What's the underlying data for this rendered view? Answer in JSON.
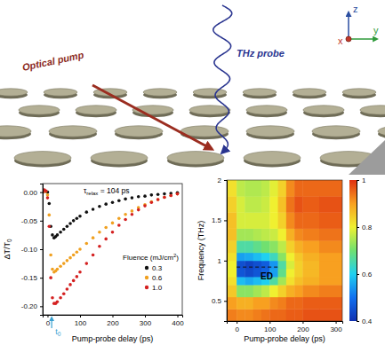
{
  "diagram": {
    "pump_label": "Optical pump",
    "probe_label": "THz probe",
    "axis_labels": [
      "x",
      "y",
      "z"
    ]
  },
  "chart_data": [
    {
      "type": "scatter",
      "x_label": "Pump-probe delay (ps)",
      "y_label": {
        "text": "ΔT/T",
        "sub": "0"
      },
      "x": [
        -15,
        -10,
        -5,
        0,
        5,
        10,
        15,
        20,
        25,
        30,
        40,
        50,
        60,
        70,
        80,
        90,
        100,
        120,
        140,
        160,
        180,
        200,
        220,
        240,
        260,
        280,
        300,
        320,
        340,
        360,
        380,
        400
      ],
      "series": [
        {
          "name": "0.3",
          "color": "#111111",
          "values": [
            0,
            0.002,
            0.001,
            0,
            -0.02,
            -0.06,
            -0.075,
            -0.08,
            -0.078,
            -0.075,
            -0.07,
            -0.065,
            -0.06,
            -0.055,
            -0.05,
            -0.046,
            -0.042,
            -0.035,
            -0.03,
            -0.025,
            -0.021,
            -0.018,
            -0.015,
            -0.012,
            -0.01,
            -0.008,
            -0.007,
            -0.005,
            -0.004,
            -0.003,
            -0.002,
            -0.001
          ]
        },
        {
          "name": "0.6",
          "color": "#f0a020",
          "values": [
            0,
            0.003,
            0.001,
            -0.005,
            -0.04,
            -0.11,
            -0.135,
            -0.14,
            -0.138,
            -0.135,
            -0.13,
            -0.125,
            -0.12,
            -0.115,
            -0.11,
            -0.105,
            -0.1,
            -0.09,
            -0.08,
            -0.07,
            -0.062,
            -0.054,
            -0.046,
            -0.039,
            -0.033,
            -0.027,
            -0.022,
            -0.017,
            -0.013,
            -0.009,
            -0.006,
            -0.003
          ]
        },
        {
          "name": "1.0",
          "color": "#d42020",
          "values": [
            0,
            0.004,
            0.002,
            -0.01,
            -0.06,
            -0.15,
            -0.185,
            -0.195,
            -0.195,
            -0.192,
            -0.185,
            -0.178,
            -0.17,
            -0.162,
            -0.155,
            -0.148,
            -0.14,
            -0.125,
            -0.11,
            -0.095,
            -0.082,
            -0.07,
            -0.058,
            -0.048,
            -0.039,
            -0.031,
            -0.024,
            -0.018,
            -0.013,
            -0.009,
            -0.006,
            -0.003
          ]
        }
      ],
      "xlim": [
        -15,
        415
      ],
      "ylim": [
        -0.215,
        0.015
      ],
      "xticks": [
        0,
        100,
        200,
        300,
        400
      ],
      "yticks": [
        {
          "value": -0.2,
          "label": "-0.20"
        },
        {
          "value": -0.15,
          "label": "-0.15"
        },
        {
          "value": -0.1,
          "label": "-0.10"
        },
        {
          "value": -0.05,
          "label": "-0.05"
        },
        {
          "value": 0,
          "label": "0.00"
        }
      ],
      "marker": "circle",
      "legend": "lower right",
      "legend_title": {
        "text": "Fluence (mJ/cm",
        "sup": "2",
        "after": ")"
      },
      "annotations": [
        {
          "text": "τ",
          "sub": "relax",
          "after": " = 104 ps"
        },
        {
          "text": "t",
          "sub": "0",
          "x": 10
        }
      ]
    },
    {
      "type": "heatmap",
      "x_label": "Pump-probe delay (ps)",
      "y_label": "Frequency (THz)",
      "x_bins": [
        -30,
        0,
        25,
        50,
        75,
        100,
        125,
        150,
        175,
        200,
        250,
        320
      ],
      "y_bins": [
        0.25,
        0.4,
        0.55,
        0.7,
        0.8,
        0.9,
        1.0,
        1.1,
        1.25,
        1.4,
        1.6,
        1.8,
        2.0
      ],
      "cells": [
        [
          0.93,
          0.92,
          0.92,
          0.93,
          0.94,
          0.95,
          0.95,
          0.96,
          0.96,
          0.97,
          0.97
        ],
        [
          0.9,
          0.88,
          0.88,
          0.9,
          0.9,
          0.92,
          0.93,
          0.95,
          0.95,
          0.96,
          0.96
        ],
        [
          0.85,
          0.72,
          0.72,
          0.74,
          0.76,
          0.8,
          0.84,
          0.88,
          0.9,
          0.92,
          0.93
        ],
        [
          0.82,
          0.58,
          0.56,
          0.58,
          0.6,
          0.66,
          0.74,
          0.82,
          0.86,
          0.88,
          0.9
        ],
        [
          0.8,
          0.46,
          0.44,
          0.46,
          0.48,
          0.55,
          0.68,
          0.8,
          0.84,
          0.87,
          0.9
        ],
        [
          0.8,
          0.45,
          0.43,
          0.45,
          0.47,
          0.54,
          0.66,
          0.78,
          0.84,
          0.87,
          0.9
        ],
        [
          0.82,
          0.55,
          0.56,
          0.58,
          0.6,
          0.64,
          0.72,
          0.8,
          0.85,
          0.88,
          0.9
        ],
        [
          0.84,
          0.66,
          0.66,
          0.68,
          0.7,
          0.72,
          0.76,
          0.84,
          0.88,
          0.9,
          0.92
        ],
        [
          0.86,
          0.74,
          0.74,
          0.75,
          0.76,
          0.77,
          0.8,
          0.88,
          0.92,
          0.93,
          0.94
        ],
        [
          0.86,
          0.78,
          0.78,
          0.78,
          0.78,
          0.8,
          0.84,
          0.92,
          0.95,
          0.95,
          0.96
        ],
        [
          0.84,
          0.78,
          0.76,
          0.76,
          0.77,
          0.8,
          0.86,
          0.94,
          0.97,
          0.96,
          0.97
        ],
        [
          0.82,
          0.76,
          0.75,
          0.75,
          0.76,
          0.79,
          0.84,
          0.92,
          0.95,
          0.95,
          0.95
        ]
      ],
      "xlim": [
        -30,
        320
      ],
      "ylim": [
        0.25,
        2
      ],
      "xticks": [
        0,
        100,
        200,
        300
      ],
      "yticks": [
        0.5,
        1,
        1.5,
        2
      ],
      "color_range": [
        0.4,
        1
      ],
      "color_ticks": [
        0.4,
        0.6,
        0.8,
        1
      ],
      "annotations": [
        {
          "text": "ED",
          "x": [
            0,
            130
          ],
          "y": 0.92
        }
      ]
    }
  ]
}
